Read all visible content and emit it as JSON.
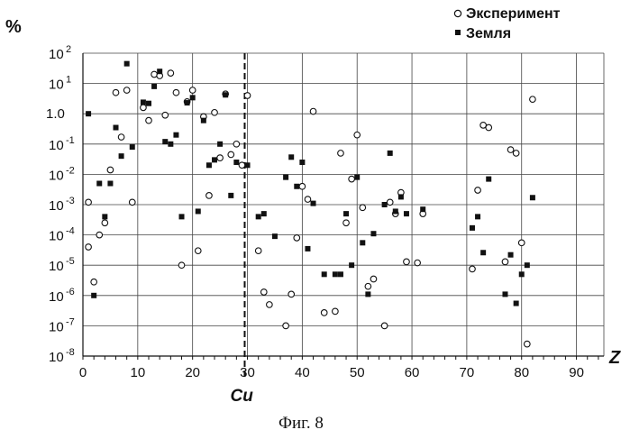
{
  "chart_data": {
    "type": "scatter",
    "ylabel": "%",
    "xlabel": "Z",
    "y_scale": "log",
    "ylim": [
      1e-08,
      100
    ],
    "xlim": [
      0,
      95
    ],
    "x_ticks": [
      0,
      10,
      20,
      30,
      40,
      50,
      60,
      70,
      80,
      90
    ],
    "x_tick_labels": [
      "0",
      "10",
      "20",
      "30",
      "40",
      "50",
      "60",
      "70",
      "80",
      "90"
    ],
    "y_ticks": [
      {
        "base": "10",
        "exp": "-8",
        "value": 1e-08
      },
      {
        "base": "10",
        "exp": "-7",
        "value": 1e-07
      },
      {
        "base": "10",
        "exp": "-6",
        "value": 1e-06
      },
      {
        "base": "10",
        "exp": "-5",
        "value": 1e-05
      },
      {
        "base": "10",
        "exp": "-4",
        "value": 0.0001
      },
      {
        "base": "10",
        "exp": "-3",
        "value": 0.001
      },
      {
        "base": "10",
        "exp": "-2",
        "value": 0.01
      },
      {
        "base": "10",
        "exp": "-1",
        "value": 0.1
      },
      {
        "base": "1.0",
        "exp": "",
        "value": 1
      },
      {
        "base": "10",
        "exp": "1",
        "value": 10
      },
      {
        "base": "10",
        "exp": "2",
        "value": 100
      }
    ],
    "grid": true,
    "legend_position": "top-right",
    "reference_line": {
      "x": 29.5,
      "label": "Cu"
    },
    "series": [
      {
        "name": "Эксперимент",
        "marker": "open-circle",
        "points": [
          [
            1,
            0.0012
          ],
          [
            1,
            4e-05
          ],
          [
            2,
            2.8e-06
          ],
          [
            3,
            0.0001
          ],
          [
            4,
            0.00025
          ],
          [
            5,
            0.014
          ],
          [
            6,
            5
          ],
          [
            7,
            0.17
          ],
          [
            8,
            6
          ],
          [
            9,
            0.0012
          ],
          [
            11,
            1.6
          ],
          [
            12,
            0.6
          ],
          [
            13,
            20
          ],
          [
            14,
            18
          ],
          [
            15,
            0.9
          ],
          [
            16,
            22
          ],
          [
            17,
            5
          ],
          [
            18,
            1e-05
          ],
          [
            19,
            2.5
          ],
          [
            20,
            6
          ],
          [
            21,
            3e-05
          ],
          [
            22,
            0.8
          ],
          [
            23,
            0.002
          ],
          [
            24,
            1.1
          ],
          [
            25,
            0.035
          ],
          [
            26,
            4.5
          ],
          [
            27,
            0.045
          ],
          [
            28,
            0.1
          ],
          [
            29,
            0.0201
          ],
          [
            30,
            4
          ],
          [
            32,
            3e-05
          ],
          [
            33,
            1.3e-06
          ],
          [
            34,
            5e-07
          ],
          [
            37,
            1e-07
          ],
          [
            38,
            1.1e-06
          ],
          [
            39,
            8e-05
          ],
          [
            40,
            0.004
          ],
          [
            41,
            0.0015
          ],
          [
            42,
            1.2
          ],
          [
            44,
            2.7e-07
          ],
          [
            46,
            3e-07
          ],
          [
            47,
            0.05
          ],
          [
            48,
            0.00025
          ],
          [
            49,
            0.007
          ],
          [
            50,
            0.2
          ],
          [
            51,
            0.0008
          ],
          [
            52,
            2e-06
          ],
          [
            53,
            3.5e-06
          ],
          [
            55,
            1e-07
          ],
          [
            56,
            0.0012
          ],
          [
            57,
            0.0005
          ],
          [
            58,
            0.0025
          ],
          [
            59,
            1.3e-05
          ],
          [
            61,
            1.2e-05
          ],
          [
            62,
            0.0005
          ],
          [
            71,
            7.5e-06
          ],
          [
            72,
            0.003
          ],
          [
            73,
            0.42
          ],
          [
            74,
            0.35
          ],
          [
            77,
            1.3e-05
          ],
          [
            78,
            0.065
          ],
          [
            79,
            0.05
          ],
          [
            80,
            5.5e-05
          ],
          [
            81,
            2.5e-08
          ],
          [
            82,
            3
          ]
        ]
      },
      {
        "name": "Земля",
        "marker": "filled-square",
        "points": [
          [
            1,
            1
          ],
          [
            2,
            1e-06
          ],
          [
            3,
            0.005
          ],
          [
            4,
            0.0004
          ],
          [
            5,
            0.005
          ],
          [
            6,
            0.35
          ],
          [
            7,
            0.04
          ],
          [
            8,
            45
          ],
          [
            9,
            0.08
          ],
          [
            11,
            2.4
          ],
          [
            12,
            2.2
          ],
          [
            13,
            8
          ],
          [
            14,
            25
          ],
          [
            15,
            0.12
          ],
          [
            16,
            0.1
          ],
          [
            17,
            0.2
          ],
          [
            18,
            0.0004
          ],
          [
            19,
            2.3
          ],
          [
            20,
            3.4
          ],
          [
            21,
            0.0006
          ],
          [
            22,
            0.6
          ],
          [
            23,
            0.02
          ],
          [
            24,
            0.03
          ],
          [
            25,
            0.1
          ],
          [
            26,
            4.2
          ],
          [
            27,
            0.002
          ],
          [
            28,
            0.025
          ],
          [
            30,
            0.02
          ],
          [
            32,
            0.0004
          ],
          [
            33,
            0.0005
          ],
          [
            35,
            9e-05
          ],
          [
            37,
            0.008
          ],
          [
            38,
            0.037
          ],
          [
            39,
            0.004
          ],
          [
            40,
            0.025
          ],
          [
            41,
            3.5e-05
          ],
          [
            42,
            0.0011
          ],
          [
            44,
            5e-06
          ],
          [
            46,
            5e-06
          ],
          [
            47,
            5e-06
          ],
          [
            48,
            0.0005
          ],
          [
            49,
            1e-05
          ],
          [
            50,
            0.008
          ],
          [
            51,
            5.5e-05
          ],
          [
            52,
            1.1e-06
          ],
          [
            53,
            0.00011
          ],
          [
            55,
            0.001
          ],
          [
            56,
            0.05
          ],
          [
            57,
            0.0006
          ],
          [
            58,
            0.0018
          ],
          [
            59,
            0.0005
          ],
          [
            62,
            0.0007
          ],
          [
            71,
            0.00017
          ],
          [
            72,
            0.0004
          ],
          [
            73,
            2.6e-05
          ],
          [
            74,
            0.007
          ],
          [
            77,
            1.1e-06
          ],
          [
            78,
            2.2e-05
          ],
          [
            79,
            5.5e-07
          ],
          [
            80,
            5e-06
          ],
          [
            81,
            1e-05
          ],
          [
            82,
            0.0017
          ]
        ]
      }
    ],
    "caption": "Фиг. 8"
  }
}
